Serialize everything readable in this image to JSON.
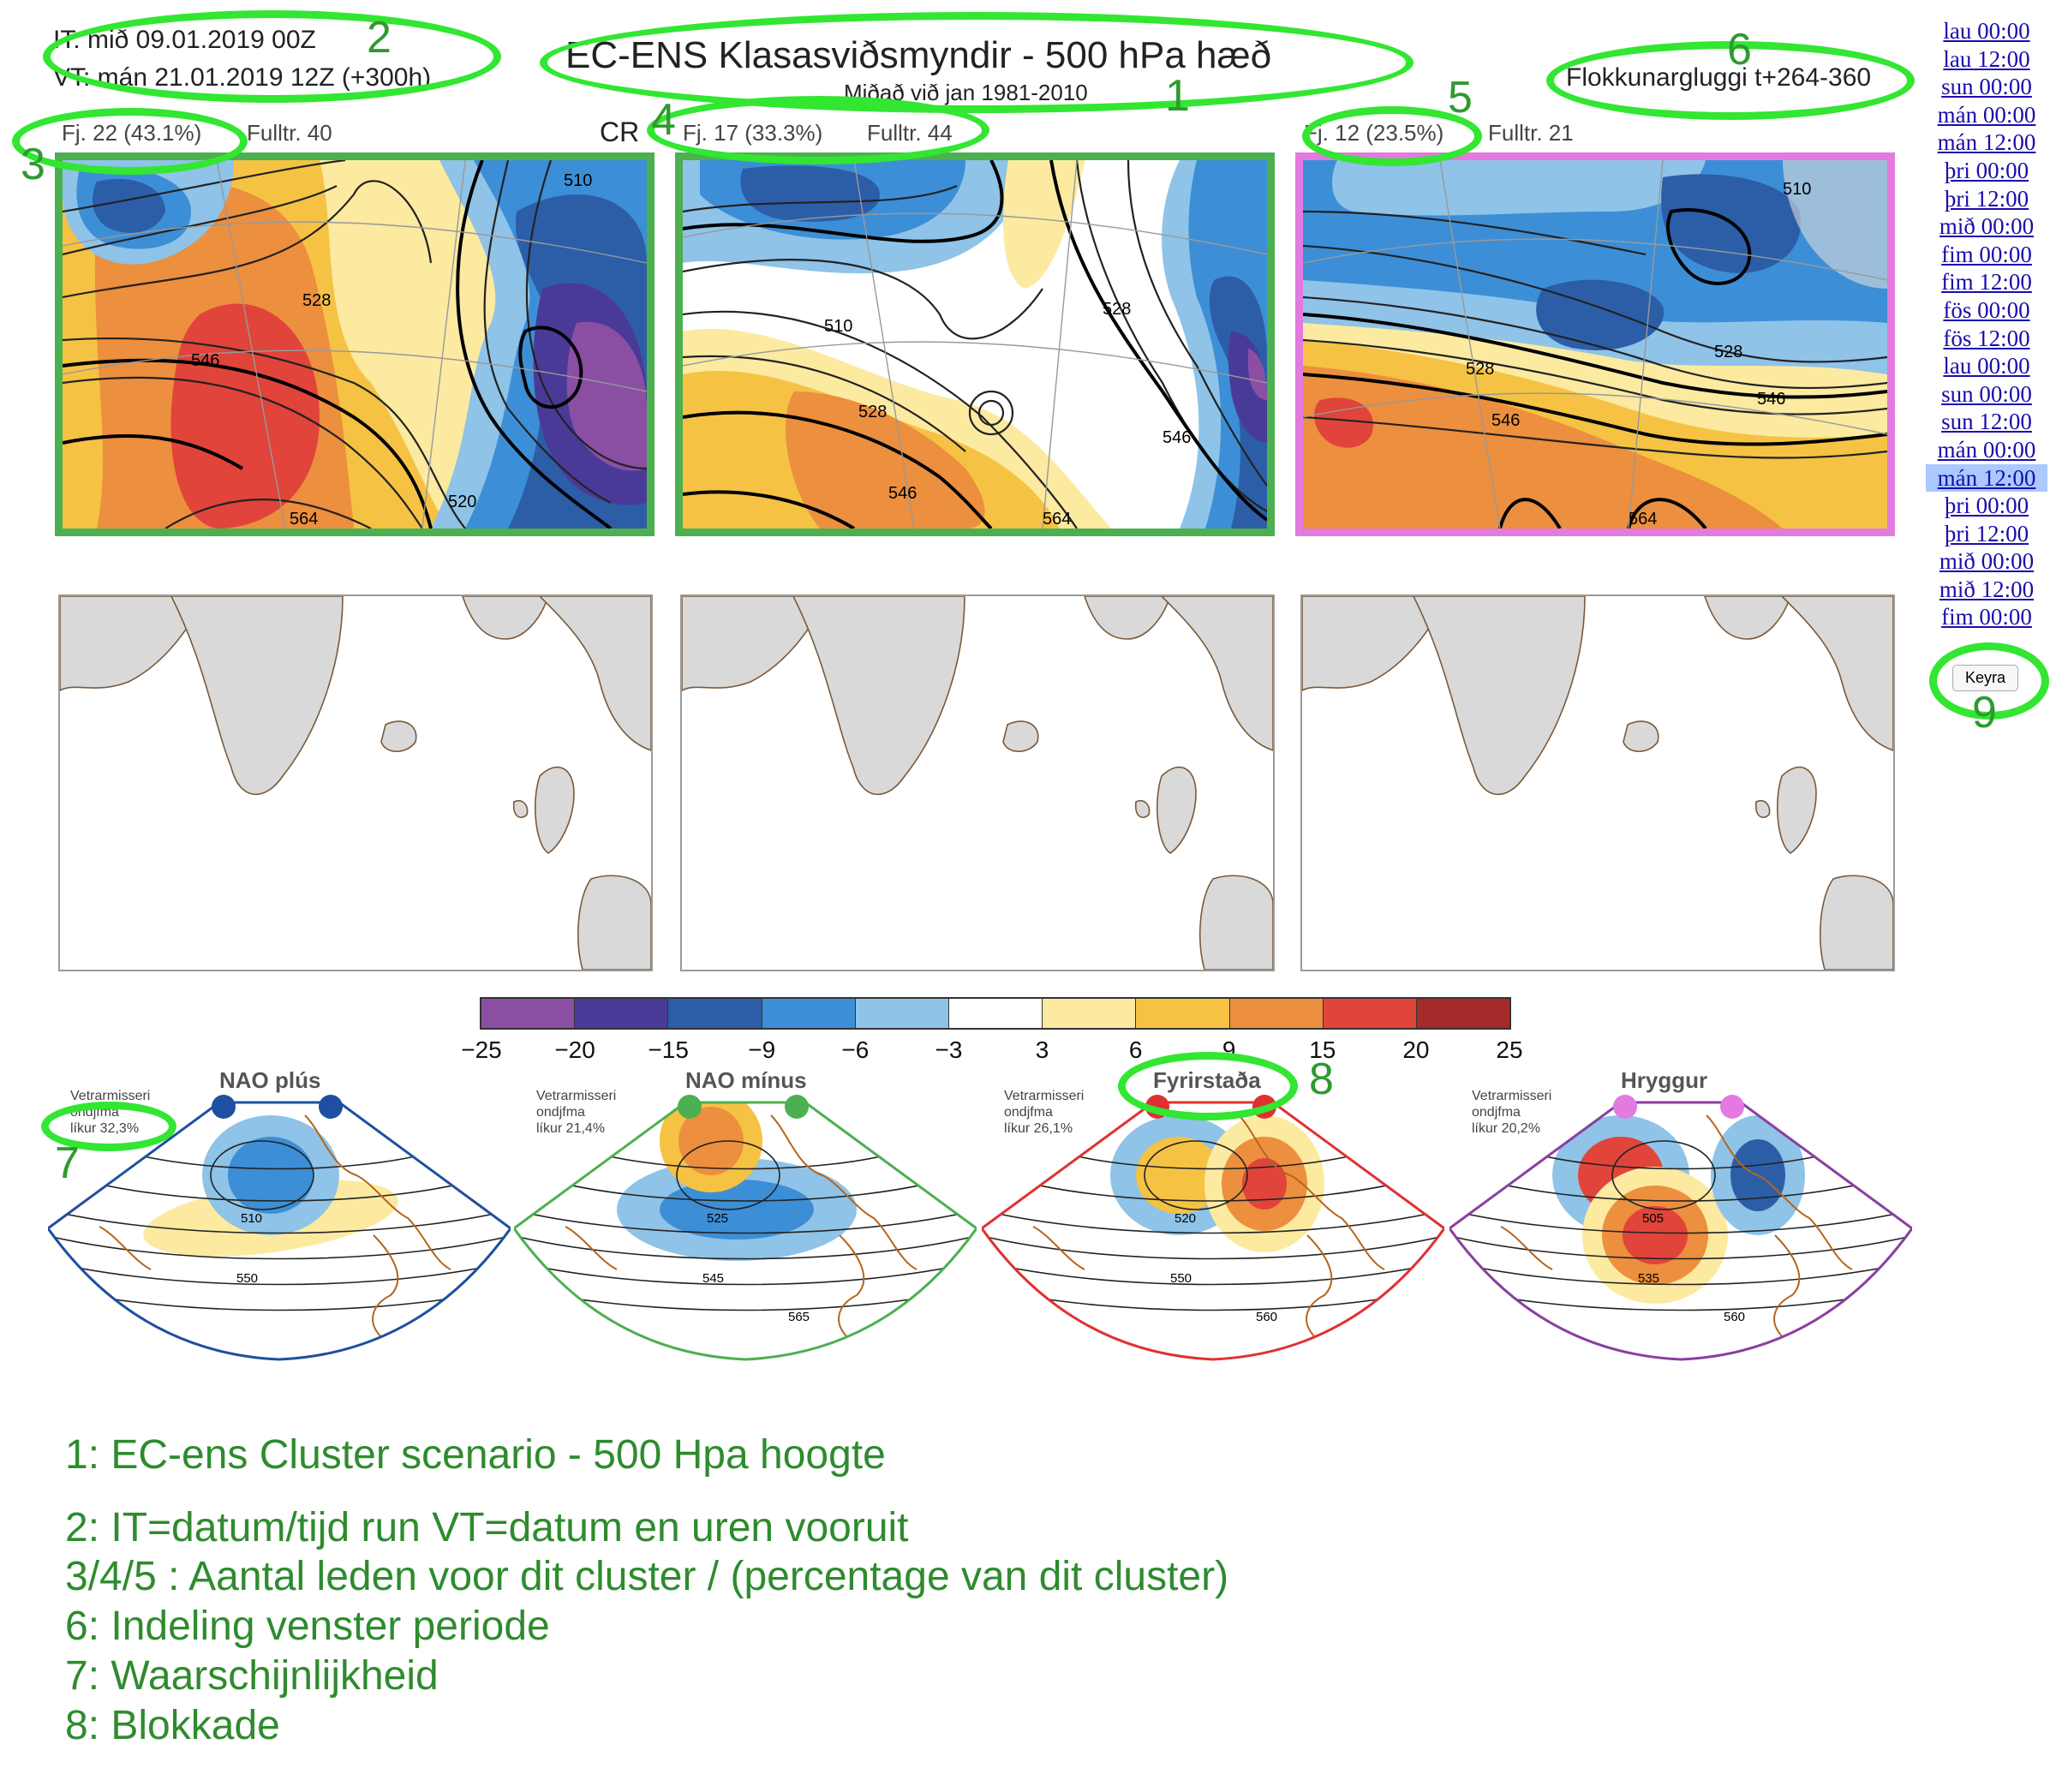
{
  "header": {
    "init_time": "IT: mið 09.01.2019 00Z",
    "valid_time": "VT: mán 21.01.2019 12Z  (+300h)",
    "title": "EC-ENS Klasasviðsmyndir - 500 hPa hæð",
    "subtitle": "Miðað við jan 1981-2010",
    "window": "Flokkunargluggi t+264-360"
  },
  "clusters": [
    {
      "members": "Fj. 22 (43.1%)",
      "rep": "Fulltr. 40",
      "frame_color": "#4caf50"
    },
    {
      "members": "Fj. 17 (33.3%)",
      "rep": "Fulltr. 44",
      "frame_color": "#4caf50"
    },
    {
      "members": "Fj. 12 (23.5%)",
      "rep": "Fulltr. 21",
      "frame_color": "#e27ae0"
    }
  ],
  "cr_label": "CR",
  "time_links": [
    "lau 00:00",
    "lau 12:00",
    "sun 00:00",
    "mán 00:00",
    "mán 12:00",
    "þri 00:00",
    "þri 12:00",
    "mið 00:00",
    "fim 00:00",
    "fim 12:00",
    "fös 00:00",
    "fös 12:00",
    "lau 00:00",
    "sun 00:00",
    "sun 12:00",
    "mán 00:00",
    "mán 12:00",
    "þri 00:00",
    "þri 12:00",
    "mið 00:00",
    "mið 12:00",
    "fim 00:00"
  ],
  "selected_time_index": 16,
  "run_button": "Keyra",
  "colorbar": {
    "ticks": [
      "−25",
      "−20",
      "−15",
      "−9",
      "−6",
      "−3",
      "3",
      "6",
      "9",
      "15",
      "20",
      "25"
    ],
    "colors": [
      "#8a4fa3",
      "#4a3a98",
      "#2c5ea8",
      "#3c8fd6",
      "#8fc3e8",
      "#ffffff",
      "#fbeaa0",
      "#f5c244",
      "#ec8f3e",
      "#e0443a",
      "#a52a2a"
    ]
  },
  "regimes": [
    {
      "name": "NAO plús",
      "season": "Vetrarmisseri",
      "months": "ondjfma",
      "prob": "líkur 32,3%",
      "color": "#1e4fa0",
      "dot": "#1e4fa0",
      "contours": [
        "510",
        "550"
      ]
    },
    {
      "name": "NAO mínus",
      "season": "Vetrarmisseri",
      "months": "ondjfma",
      "prob": "líkur 21,4%",
      "color": "#4caf50",
      "dot": "#4caf50",
      "contours": [
        "525",
        "545",
        "565"
      ]
    },
    {
      "name": "Fyrirstaða",
      "season": "Vetrarmisseri",
      "months": "ondjfma",
      "prob": "líkur 26,1%",
      "color": "#e03030",
      "dot": "#e03030",
      "contours": [
        "520",
        "550",
        "560"
      ]
    },
    {
      "name": "Hryggur",
      "season": "Vetrarmisseri",
      "months": "ondjfma",
      "prob": "líkur 20,2%",
      "color": "#8a3fa0",
      "dot": "#e27ae0",
      "contours": [
        "505",
        "535",
        "560"
      ]
    }
  ],
  "contour_labels": {
    "c1": [
      "510",
      "528",
      "546",
      "520",
      "564"
    ],
    "c2": [
      "510",
      "528",
      "546",
      "528",
      "546",
      "564"
    ],
    "c3": [
      "510",
      "528",
      "528",
      "546",
      "546",
      "564"
    ]
  },
  "annotation_numbers": [
    "1",
    "2",
    "3",
    "4",
    "5",
    "6",
    "7",
    "8",
    "9"
  ],
  "legend": [
    "1: EC-ens Cluster scenario - 500 Hpa hoogte",
    "2: IT=datum/tijd run  VT=datum en uren vooruit",
    "3/4/5 : Aantal leden voor dit cluster / (percentage van dit cluster)",
    "6: Indeling venster periode",
    "7: Waarschijnlijkheid",
    "8: Blokkade"
  ]
}
